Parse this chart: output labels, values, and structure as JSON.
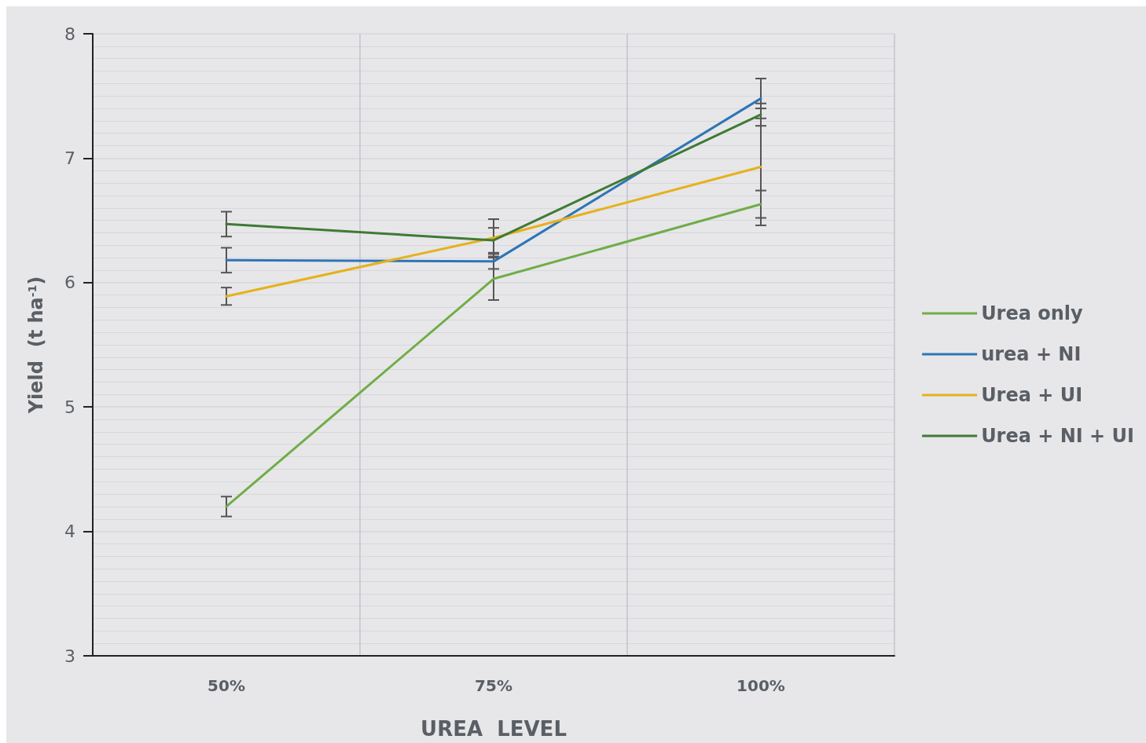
{
  "chart_data": {
    "type": "line",
    "xlabel": "UREA  LEVEL",
    "ylabel": "Yield  (t ha$^{-1}$)",
    "categories": [
      "50%",
      "75%",
      "100%"
    ],
    "series": [
      {
        "name": "Urea only",
        "color": "#70ad47",
        "values": [
          4.2,
          6.03,
          6.63
        ],
        "errors": [
          0.08,
          0.17,
          0.11
        ]
      },
      {
        "name": "urea + NI",
        "color": "#2e75b6",
        "values": [
          6.18,
          6.17,
          7.48
        ],
        "errors": [
          0.1,
          0.06,
          0.16
        ]
      },
      {
        "name": "Urea + UI",
        "color": "#e5b11e",
        "values": [
          5.89,
          6.36,
          6.93
        ],
        "errors": [
          0.07,
          0.15,
          0.47
        ]
      },
      {
        "name": "Urea + NI + UI",
        "color": "#3f7a35",
        "values": [
          6.47,
          6.34,
          7.35
        ],
        "errors": [
          0.1,
          0.1,
          0.09
        ]
      }
    ],
    "ylim": [
      3,
      8
    ],
    "yticks": [
      3,
      4,
      5,
      6,
      7,
      8
    ],
    "grid": true,
    "legend": "right",
    "marker": "none",
    "line_style": "solid"
  }
}
